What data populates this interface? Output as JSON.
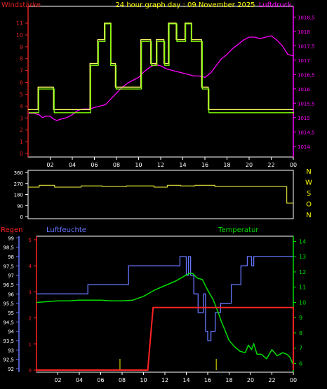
{
  "header": {
    "wind_title": "Windstärke",
    "graph_title": "24 hour graph day : 09 November 2025",
    "pressure_title": "Luftdruck"
  },
  "lower_header": {
    "rain_title": "Regen",
    "humidity_title": "Luftfeuchte",
    "temp_title": "Temperatur"
  },
  "compass": [
    "N",
    "W",
    "S",
    "O",
    "N"
  ],
  "x_ticks": [
    "02",
    "04",
    "06",
    "08",
    "10",
    "12",
    "14",
    "16",
    "18",
    "20",
    "22",
    "00"
  ],
  "colors": {
    "wind": "#80ff00",
    "gust": "#ffff66",
    "pressure": "#ff00ff",
    "direction": "#cccc33",
    "humidity": "#6677ff",
    "temperature": "#00dd00",
    "rain": "#ff2222",
    "axis_red": "#dd2222",
    "compass": "#ffff00",
    "frame": "#ffffff"
  },
  "chart_data": [
    {
      "type": "line",
      "title": "24 hour graph day : 09 November 2025",
      "x_range": [
        0,
        24
      ],
      "x_ticks": [
        "02",
        "04",
        "06",
        "08",
        "10",
        "12",
        "14",
        "16",
        "18",
        "20",
        "22",
        "00"
      ],
      "y_left": {
        "label": "Windstärke",
        "range": [
          0,
          11
        ],
        "ticks": [
          "0",
          "1",
          "2",
          "3",
          "4",
          "5",
          "6",
          "7",
          "8",
          "9",
          "10",
          "11"
        ]
      },
      "y_right": {
        "label": "Luftdruck",
        "range": [
          1013.75,
          1018.85
        ],
        "ticks": [
          "1014",
          "1014,5",
          "1015",
          "1015,5",
          "1016",
          "1016,5",
          "1017",
          "1017,5",
          "1018",
          "1018,5"
        ]
      },
      "series": [
        {
          "name": "Windstärke",
          "axis": "left",
          "x": [
            0,
            0.9,
            0.9,
            2.3,
            2.3,
            5.6,
            5.6,
            6.3,
            6.3,
            6.9,
            6.9,
            7.4,
            7.4,
            7.9,
            7.9,
            10.2,
            10.2,
            11.1,
            11.1,
            11.6,
            11.6,
            12.3,
            12.3,
            12.7,
            12.7,
            13.4,
            13.4,
            14.2,
            14.2,
            14.7,
            14.7,
            15.7,
            15.7,
            16.3,
            16.3,
            24
          ],
          "y": [
            3.5,
            3.5,
            5.5,
            5.5,
            3.5,
            3.5,
            7.5,
            7.5,
            9.5,
            9.5,
            11,
            11,
            7.5,
            7.5,
            5.5,
            5.5,
            9.5,
            9.5,
            7.5,
            7.5,
            9.5,
            9.5,
            7.5,
            7.5,
            11,
            11,
            9.5,
            9.5,
            11,
            11,
            9.5,
            9.5,
            5.5,
            5.5,
            3.5,
            3.5
          ]
        },
        {
          "name": "Böen",
          "axis": "left",
          "x": [
            0,
            0.9,
            0.9,
            2.3,
            2.3,
            5.6,
            5.6,
            6.3,
            6.3,
            6.9,
            6.9,
            7.5,
            7.5,
            7.9,
            7.9,
            10.2,
            10.2,
            11.1,
            11.1,
            11.6,
            11.6,
            12.3,
            12.3,
            12.7,
            12.7,
            13.4,
            13.4,
            14.2,
            14.2,
            14.8,
            14.8,
            15.7,
            15.7,
            16.3,
            16.3,
            24
          ],
          "y": [
            3.7,
            3.7,
            5.6,
            5.6,
            3.7,
            3.7,
            7.6,
            7.6,
            9.6,
            9.6,
            11,
            11,
            7.6,
            7.6,
            5.6,
            5.6,
            9.6,
            9.6,
            7.6,
            7.6,
            9.6,
            9.6,
            7.6,
            7.6,
            11,
            11,
            9.6,
            9.6,
            11,
            11,
            9.6,
            9.6,
            5.6,
            5.6,
            3.7,
            3.7
          ]
        },
        {
          "name": "Luftdruck",
          "axis": "right",
          "x": [
            0,
            0.5,
            1,
            1.3,
            1.6,
            2,
            2.3,
            2.6,
            3,
            3.5,
            4,
            4.5,
            5,
            5.5,
            6,
            6.5,
            7,
            7.5,
            8,
            8.5,
            9,
            9.5,
            10,
            10.5,
            11,
            11.5,
            12,
            12.5,
            13,
            13.5,
            14,
            14.5,
            15,
            15.5,
            16,
            16.5,
            17,
            17.5,
            18,
            18.5,
            19,
            19.5,
            20,
            20.5,
            21,
            21.5,
            22,
            22.5,
            23,
            23.5,
            24
          ],
          "y": [
            1015.15,
            1015.15,
            1015.1,
            1015.0,
            1015.05,
            1015.05,
            1014.95,
            1014.9,
            1014.95,
            1015.0,
            1015.1,
            1015.25,
            1015.3,
            1015.3,
            1015.35,
            1015.4,
            1015.45,
            1015.65,
            1015.85,
            1016.05,
            1016.2,
            1016.3,
            1016.4,
            1016.6,
            1016.75,
            1016.85,
            1016.8,
            1016.7,
            1016.65,
            1016.6,
            1016.55,
            1016.5,
            1016.45,
            1016.45,
            1016.4,
            1016.55,
            1016.8,
            1017.05,
            1017.2,
            1017.4,
            1017.55,
            1017.7,
            1017.8,
            1017.8,
            1017.75,
            1017.8,
            1017.85,
            1017.7,
            1017.5,
            1017.2,
            1017.15
          ]
        }
      ]
    },
    {
      "type": "line",
      "x_range": [
        0,
        24
      ],
      "y_left": {
        "range": [
          0,
          360
        ],
        "ticks": [
          "0",
          "90",
          "180",
          "270",
          "360"
        ]
      },
      "y_right_labels": [
        "N",
        "W",
        "S",
        "O",
        "N"
      ],
      "series": [
        {
          "name": "Windrichtung",
          "x": [
            0,
            1,
            1,
            2.4,
            2.4,
            4.8,
            4.8,
            6.7,
            6.7,
            8.9,
            8.9,
            11.4,
            11.4,
            12.6,
            12.6,
            13.8,
            13.8,
            15.1,
            15.1,
            16.9,
            16.9,
            23.4,
            23.4,
            24
          ],
          "y": [
            240,
            240,
            255,
            255,
            240,
            240,
            250,
            250,
            245,
            245,
            250,
            250,
            240,
            240,
            255,
            255,
            250,
            250,
            255,
            255,
            245,
            245,
            110,
            110
          ]
        }
      ]
    },
    {
      "type": "line",
      "x_range": [
        0,
        24
      ],
      "y_humidity": {
        "label": "Luftfeuchte",
        "range": [
          91.85,
          99.05
        ],
        "ticks": [
          "92",
          "92,5",
          "93",
          "93,5",
          "94",
          "94,5",
          "95",
          "95,5",
          "96",
          "96,5",
          "97",
          "97,5",
          "98",
          "98,5",
          "99"
        ]
      },
      "y_rain": {
        "label": "Regen",
        "range": [
          0,
          5
        ],
        "ticks": [
          "0",
          "1",
          "2",
          "3",
          "4",
          "5"
        ]
      },
      "y_temp": {
        "label": "Temperatur",
        "range": [
          5.7,
          14.25
        ],
        "ticks": [
          "6",
          "7",
          "8",
          "9",
          "10",
          "11",
          "12",
          "13",
          "14"
        ]
      },
      "series": [
        {
          "name": "Luftfeuchte",
          "axis": "humidity",
          "x": [
            0,
            4.8,
            4.8,
            8.6,
            8.6,
            13.4,
            13.4,
            14,
            14,
            14.2,
            14.2,
            14.4,
            14.4,
            14.7,
            14.7,
            15.1,
            15.1,
            15.6,
            15.6,
            15.8,
            15.8,
            16,
            16,
            16.3,
            16.3,
            16.7,
            16.7,
            17.2,
            17.2,
            18.2,
            18.2,
            19.1,
            19.1,
            19.7,
            19.7,
            20.1,
            20.1,
            20.3,
            20.3,
            24
          ],
          "y": [
            96,
            96,
            96.5,
            96.5,
            97.5,
            97.5,
            98,
            98,
            97,
            97,
            98,
            98,
            97,
            97,
            96,
            96,
            95,
            95,
            96,
            96,
            94,
            94,
            93.5,
            93.5,
            94,
            94,
            95,
            95,
            95.5,
            95.5,
            96.5,
            96.5,
            97.5,
            97.5,
            98,
            98,
            97.5,
            97.5,
            98,
            98
          ]
        },
        {
          "name": "Temperatur",
          "axis": "temp",
          "x": [
            0,
            1,
            2,
            3,
            4,
            5,
            6,
            7,
            8,
            9,
            10,
            11,
            12,
            13,
            13.5,
            14,
            14.3,
            14.6,
            15,
            15.5,
            16,
            16.5,
            17,
            17.3,
            17.6,
            18,
            18.5,
            19,
            19.5,
            19.8,
            20.1,
            20.3,
            20.6,
            21,
            21.5,
            22,
            22.5,
            23,
            23.4,
            23.7,
            24
          ],
          "y": [
            10,
            10.05,
            10.1,
            10.1,
            10.15,
            10.15,
            10.15,
            10.1,
            10.1,
            10.15,
            10.4,
            10.8,
            11.1,
            11.4,
            11.6,
            11.8,
            11.9,
            11.9,
            11.6,
            11.5,
            10.8,
            10.2,
            9.3,
            8.7,
            8.2,
            7.5,
            7.1,
            6.8,
            6.7,
            7.2,
            6.9,
            7.3,
            6.6,
            6.6,
            6.3,
            6.9,
            6.5,
            6.7,
            6.6,
            6.4,
            5.9
          ]
        },
        {
          "name": "Regen",
          "axis": "rain",
          "x": [
            0,
            10.4,
            10.6,
            10.9,
            11.3,
            24,
            24
          ],
          "y": [
            0,
            0,
            1.0,
            2.4,
            2.4,
            2.4,
            0
          ]
        }
      ],
      "markers": [
        {
          "name": "tick1",
          "x": 7.8
        },
        {
          "name": "tick2",
          "x": 16.8
        }
      ]
    }
  ]
}
